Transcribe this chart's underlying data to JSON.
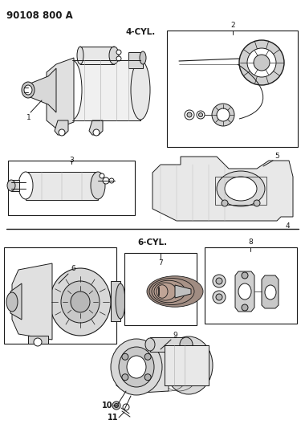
{
  "title": "90108 800 A",
  "label_4cyl": "4-CYL.",
  "label_6cyl": "6-CYL.",
  "bg_color": "#ffffff",
  "line_color": "#1a1a1a",
  "gray_color": "#888888",
  "part_numbers": [
    "1",
    "2",
    "3",
    "4",
    "5",
    "6",
    "7",
    "8",
    "9",
    "10",
    "11"
  ],
  "title_fontsize": 8.5,
  "label_fontsize": 7.5,
  "partnum_fontsize": 6.5
}
